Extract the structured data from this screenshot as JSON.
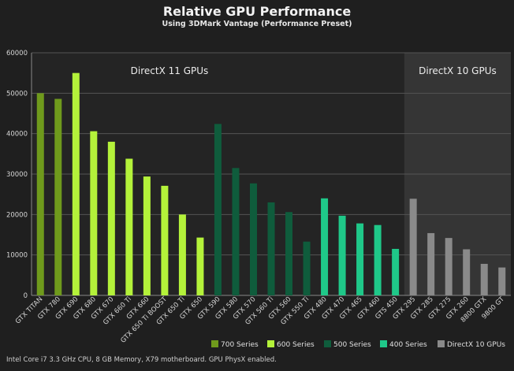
{
  "chart_data": {
    "type": "bar",
    "title": "Relative GPU Performance",
    "subtitle": "Using 3DMark Vantage (Performance Preset)",
    "xlabel": "",
    "ylabel": "",
    "ylim": [
      0,
      60000
    ],
    "yticks": [
      0,
      10000,
      20000,
      30000,
      40000,
      50000,
      60000
    ],
    "grid": true,
    "legend_position": "bottom-right",
    "categories": [
      "GTX TITAN",
      "GTX 780",
      "GTX 690",
      "GTX 680",
      "GTX 670",
      "GTX 660 Ti",
      "GTX 660",
      "GTX 650 Ti BOOST",
      "GTX 650 Ti",
      "GTX 650",
      "GTX 590",
      "GTX 580",
      "GTX 570",
      "GTX 560 Ti",
      "GTX 560",
      "GTX 550 Ti",
      "GTX 480",
      "GTX 470",
      "GTX 465",
      "GTX 460",
      "GTS 450",
      "GTX 295",
      "GTX 285",
      "GTX 275",
      "GTX 260",
      "8800 GTX",
      "9800 GT"
    ],
    "values": [
      50000,
      48600,
      55000,
      40600,
      38000,
      33800,
      29400,
      27100,
      20000,
      14300,
      42400,
      31500,
      27700,
      23000,
      20600,
      13300,
      24000,
      19700,
      17800,
      17400,
      11500,
      23900,
      15400,
      14200,
      11400,
      7800,
      6900
    ],
    "series_index": [
      0,
      0,
      1,
      1,
      1,
      1,
      1,
      1,
      1,
      1,
      2,
      2,
      2,
      2,
      2,
      2,
      3,
      3,
      3,
      3,
      3,
      4,
      4,
      4,
      4,
      4,
      4
    ],
    "series": [
      {
        "name": "700 Series",
        "color": "#6f9a1c"
      },
      {
        "name": "600 Series",
        "color": "#b4f23a"
      },
      {
        "name": "500 Series",
        "color": "#0f5c3c"
      },
      {
        "name": "400 Series",
        "color": "#1fc889"
      },
      {
        "name": "DirectX 10 GPUs",
        "color": "#8a8a8a"
      }
    ],
    "regions": [
      {
        "label": "DirectX 11 GPUs",
        "from_category": 0,
        "to_category": 20
      },
      {
        "label": "DirectX 10 GPUs",
        "from_category": 21,
        "to_category": 26
      }
    ]
  },
  "footer": "Intel Core i7 3.3 GHz CPU, 8 GB Memory, X79 motherboard. GPU PhysX enabled."
}
